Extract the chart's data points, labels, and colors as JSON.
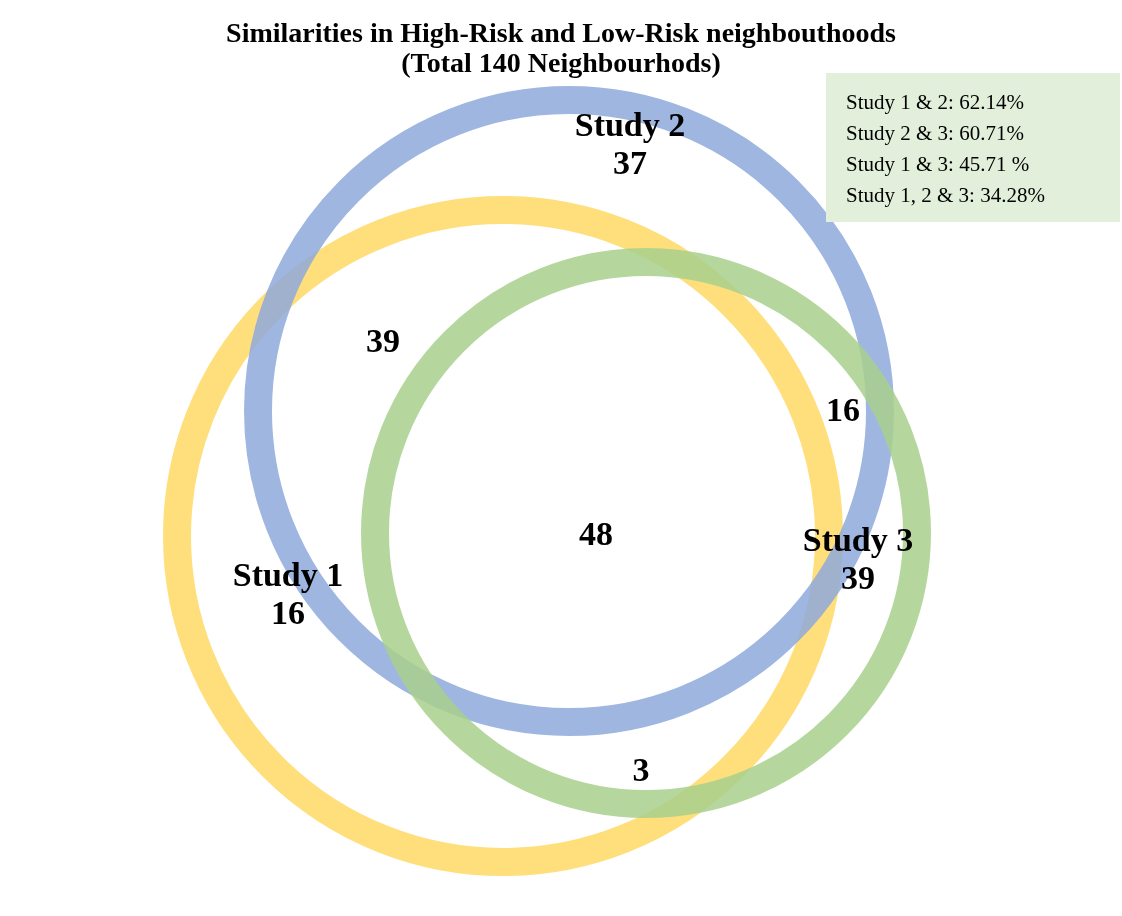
{
  "chart_data": {
    "type": "other",
    "title": "Similarities  in High-Risk and Low-Risk neighbouthoods",
    "subtitle": "(Total 140 Neighbourhods)",
    "categories": [
      "Study 1",
      "Study 2",
      "Study 3"
    ],
    "values": [
      16,
      37,
      39
    ],
    "data_labels": true,
    "colors": [
      "#ffd966",
      "#8faadc",
      "#a9d18e"
    ],
    "annotations": [
      "39",
      "16",
      "3",
      "48",
      "Study 1 & 2: 62.14%",
      "Study 2 & 3: 60.71%",
      "Study 1 & 3: 45.71 %",
      "Study 1, 2 & 3: 34.28%"
    ]
  }
}
